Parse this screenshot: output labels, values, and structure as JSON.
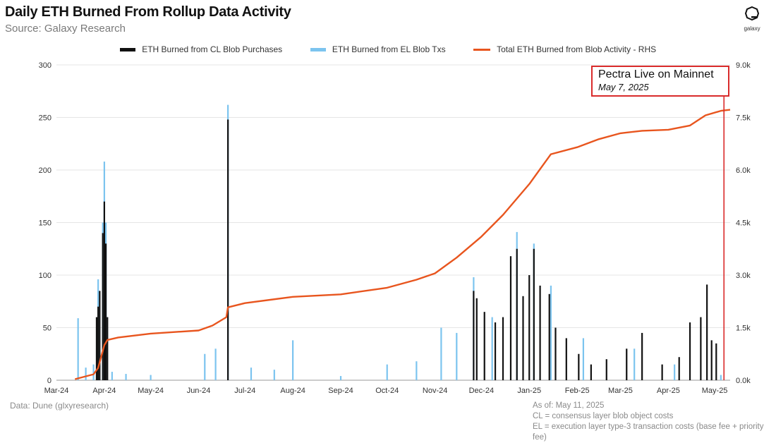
{
  "title": "Daily ETH Burned From Rollup Data Activity",
  "subtitle": "Source: Galaxy Research",
  "logo_text": "galaxy",
  "footnote_left": "Data: Dune (glxyresearch)",
  "footnote_right": [
    "As of: May 11, 2025",
    "CL = consensus layer blob object costs",
    "EL = execution layer type-3 transaction costs (base fee + priority fee)"
  ],
  "annotation": {
    "title": "Pectra Live on Mainnet",
    "date": "May 7, 2025"
  },
  "colors": {
    "cl": "#111111",
    "el": "#7cc4ef",
    "total": "#e8551e",
    "annotation": "#d92b2b",
    "grid": "#e5e5e5"
  },
  "chart_data": {
    "type": "bar",
    "title": "Daily ETH Burned From Rollup Data Activity",
    "legend_placement": "top-center",
    "grid": true,
    "x": {
      "tick_labels": [
        "Mar-24",
        "Apr-24",
        "May-24",
        "Jun-24",
        "Jul-24",
        "Aug-24",
        "Sep-24",
        "Oct-24",
        "Nov-24",
        "Dec-24",
        "Jan-25",
        "Feb-25",
        "Mar-25",
        "Apr-25",
        "May-25"
      ],
      "range": [
        "2024-03-01",
        "2025-05-11"
      ]
    },
    "y_left": {
      "range": [
        0,
        300
      ],
      "ticks": [
        0,
        50,
        100,
        150,
        200,
        250,
        300
      ],
      "tick_labels": [
        "0",
        "50",
        "100",
        "150",
        "200",
        "250",
        "300"
      ]
    },
    "y_right": {
      "range": [
        0,
        9000
      ],
      "ticks": [
        0,
        1500,
        3000,
        4500,
        6000,
        7500,
        9000
      ],
      "tick_labels": [
        "0.0k",
        "1.5k",
        "3.0k",
        "4.5k",
        "6.0k",
        "7.5k",
        "9.0k"
      ]
    },
    "series": [
      {
        "name": "ETH Burned from CL Blob Purchases",
        "type": "bar",
        "axis": "left",
        "points": [
          [
            "2024-03-27",
            60
          ],
          [
            "2024-03-28",
            70
          ],
          [
            "2024-03-29",
            85
          ],
          [
            "2024-03-31",
            140
          ],
          [
            "2024-04-01",
            170
          ],
          [
            "2024-04-02",
            130
          ],
          [
            "2024-04-03",
            60
          ],
          [
            "2024-06-20",
            248
          ],
          [
            "2024-11-26",
            85
          ],
          [
            "2024-11-28",
            78
          ],
          [
            "2024-12-03",
            65
          ],
          [
            "2024-12-10",
            55
          ],
          [
            "2024-12-15",
            60
          ],
          [
            "2024-12-20",
            118
          ],
          [
            "2024-12-24",
            125
          ],
          [
            "2024-12-28",
            80
          ],
          [
            "2025-01-01",
            100
          ],
          [
            "2025-01-04",
            125
          ],
          [
            "2025-01-08",
            90
          ],
          [
            "2025-01-14",
            82
          ],
          [
            "2025-01-18",
            50
          ],
          [
            "2025-01-25",
            40
          ],
          [
            "2025-02-02",
            25
          ],
          [
            "2025-02-10",
            15
          ],
          [
            "2025-02-20",
            20
          ],
          [
            "2025-03-05",
            30
          ],
          [
            "2025-03-15",
            45
          ],
          [
            "2025-03-28",
            15
          ],
          [
            "2025-04-08",
            22
          ],
          [
            "2025-04-15",
            55
          ],
          [
            "2025-04-22",
            60
          ],
          [
            "2025-04-26",
            91
          ],
          [
            "2025-04-29",
            38
          ],
          [
            "2025-05-02",
            35
          ]
        ]
      },
      {
        "name": "ETH Burned from EL Blob Txs",
        "type": "bar",
        "axis": "left",
        "points": [
          [
            "2024-03-15",
            59
          ],
          [
            "2024-03-20",
            12
          ],
          [
            "2024-03-25",
            15
          ],
          [
            "2024-03-28",
            96
          ],
          [
            "2024-03-31",
            150
          ],
          [
            "2024-04-01",
            208
          ],
          [
            "2024-04-02",
            150
          ],
          [
            "2024-04-06",
            8
          ],
          [
            "2024-04-15",
            6
          ],
          [
            "2024-05-01",
            5
          ],
          [
            "2024-06-05",
            25
          ],
          [
            "2024-06-12",
            30
          ],
          [
            "2024-06-20",
            262
          ],
          [
            "2024-07-05",
            12
          ],
          [
            "2024-07-20",
            10
          ],
          [
            "2024-08-01",
            38
          ],
          [
            "2024-09-01",
            4
          ],
          [
            "2024-10-01",
            15
          ],
          [
            "2024-10-20",
            18
          ],
          [
            "2024-11-05",
            50
          ],
          [
            "2024-11-15",
            45
          ],
          [
            "2024-11-26",
            98
          ],
          [
            "2024-12-08",
            60
          ],
          [
            "2024-12-24",
            141
          ],
          [
            "2025-01-04",
            130
          ],
          [
            "2025-01-15",
            90
          ],
          [
            "2025-02-05",
            40
          ],
          [
            "2025-03-10",
            30
          ],
          [
            "2025-04-05",
            15
          ],
          [
            "2025-05-05",
            5
          ]
        ]
      },
      {
        "name": "Total ETH Burned from Blob Activity - RHS",
        "type": "line",
        "axis": "right",
        "points": [
          [
            "2024-03-13",
            30
          ],
          [
            "2024-03-25",
            170
          ],
          [
            "2024-03-28",
            350
          ],
          [
            "2024-04-01",
            1000
          ],
          [
            "2024-04-03",
            1150
          ],
          [
            "2024-04-10",
            1220
          ],
          [
            "2024-05-01",
            1330
          ],
          [
            "2024-06-01",
            1420
          ],
          [
            "2024-06-10",
            1560
          ],
          [
            "2024-06-19",
            1800
          ],
          [
            "2024-06-20",
            2080
          ],
          [
            "2024-07-01",
            2200
          ],
          [
            "2024-08-01",
            2380
          ],
          [
            "2024-09-01",
            2450
          ],
          [
            "2024-10-01",
            2640
          ],
          [
            "2024-10-20",
            2870
          ],
          [
            "2024-11-01",
            3050
          ],
          [
            "2024-11-15",
            3500
          ],
          [
            "2024-12-01",
            4100
          ],
          [
            "2024-12-15",
            4720
          ],
          [
            "2025-01-01",
            5600
          ],
          [
            "2025-01-15",
            6450
          ],
          [
            "2025-02-01",
            6650
          ],
          [
            "2025-02-15",
            6880
          ],
          [
            "2025-03-01",
            7050
          ],
          [
            "2025-03-15",
            7120
          ],
          [
            "2025-04-01",
            7150
          ],
          [
            "2025-04-15",
            7270
          ],
          [
            "2025-04-25",
            7560
          ],
          [
            "2025-05-05",
            7690
          ],
          [
            "2025-05-11",
            7720
          ]
        ]
      }
    ],
    "annotation": {
      "date": "2025-05-07",
      "label": "Pectra Live on Mainnet",
      "sublabel": "May 7, 2025"
    }
  }
}
